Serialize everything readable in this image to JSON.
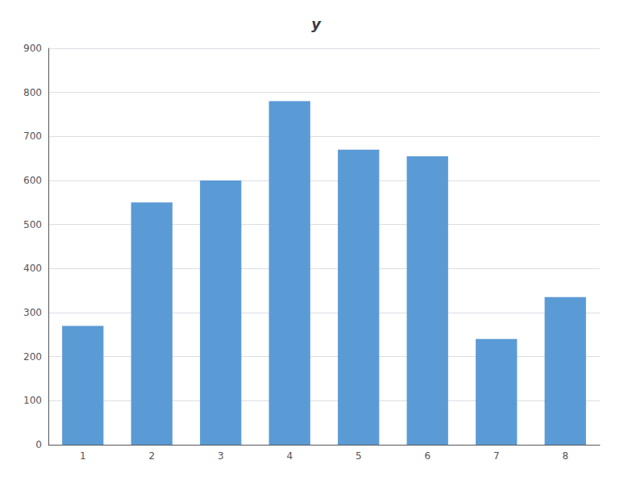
{
  "chart_data": {
    "type": "bar",
    "title": "y",
    "categories": [
      1,
      2,
      3,
      4,
      5,
      6,
      7,
      8
    ],
    "values": [
      270,
      550,
      600,
      780,
      670,
      655,
      240,
      335
    ],
    "color": "#5B9BD5",
    "ylim": [
      0,
      900
    ],
    "yticks": [
      0,
      100,
      200,
      300,
      400,
      500,
      600,
      700,
      800,
      900
    ],
    "grid": true
  }
}
